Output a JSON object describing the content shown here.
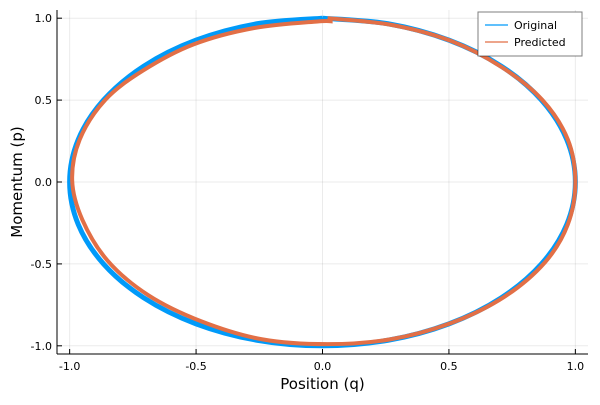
{
  "chart_data": {
    "type": "line",
    "title": "",
    "xlabel": "Position (q)",
    "ylabel": "Momentum (p)",
    "xlim": [
      -1.05,
      1.05
    ],
    "ylim": [
      -1.05,
      1.05
    ],
    "x_ticks": [
      -1.0,
      -0.5,
      0.0,
      0.5,
      1.0
    ],
    "x_tick_labels": [
      "-1.0",
      "-0.5",
      "0.0",
      "0.5",
      "1.0"
    ],
    "y_ticks": [
      -1.0,
      -0.5,
      0.0,
      0.5,
      1.0
    ],
    "y_tick_labels": [
      "-1.0",
      "-0.5",
      "0.0",
      "0.5",
      "1.0"
    ],
    "grid": true,
    "legend_position": "top-right",
    "series": [
      {
        "name": "Original",
        "color": "#009af9",
        "x": [
          0.0,
          0.259,
          0.5,
          0.707,
          0.866,
          0.966,
          1.0,
          0.966,
          0.866,
          0.707,
          0.5,
          0.259,
          0.0,
          -0.259,
          -0.5,
          -0.707,
          -0.866,
          -0.966,
          -1.0,
          -0.966,
          -0.866,
          -0.707,
          -0.5,
          -0.259,
          0.0
        ],
        "y": [
          1.0,
          0.966,
          0.866,
          0.707,
          0.5,
          0.259,
          0.0,
          -0.259,
          -0.5,
          -0.707,
          -0.866,
          -0.966,
          -1.0,
          -0.966,
          -0.866,
          -0.707,
          -0.5,
          -0.259,
          0.0,
          0.259,
          0.5,
          0.707,
          0.866,
          0.966,
          1.0
        ]
      },
      {
        "name": "Predicted",
        "color": "#e26f46",
        "x": [
          0.02,
          0.27,
          0.51,
          0.71,
          0.87,
          0.97,
          1.0,
          0.97,
          0.88,
          0.72,
          0.51,
          0.27,
          0.02,
          -0.24,
          -0.48,
          -0.69,
          -0.85,
          -0.95,
          -0.99,
          -0.96,
          -0.86,
          -0.71,
          -0.51,
          -0.27,
          -0.02,
          0.04
        ],
        "y": [
          1.0,
          0.96,
          0.86,
          0.7,
          0.5,
          0.26,
          0.0,
          -0.26,
          -0.49,
          -0.7,
          -0.86,
          -0.96,
          -0.99,
          -0.96,
          -0.85,
          -0.69,
          -0.48,
          -0.23,
          0.01,
          0.26,
          0.5,
          0.68,
          0.84,
          0.94,
          0.98,
          0.98
        ]
      }
    ]
  }
}
